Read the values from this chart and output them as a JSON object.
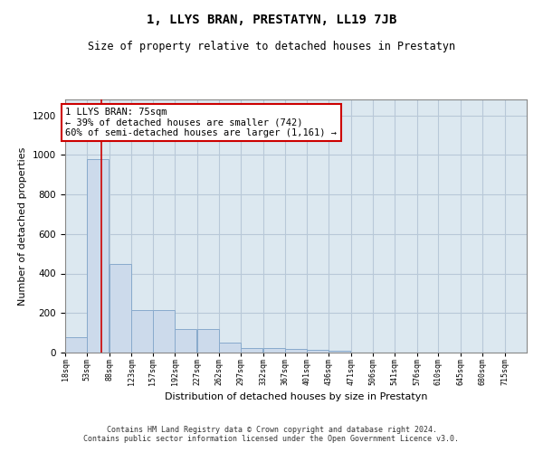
{
  "title": "1, LLYS BRAN, PRESTATYN, LL19 7JB",
  "subtitle": "Size of property relative to detached houses in Prestatyn",
  "xlabel": "Distribution of detached houses by size in Prestatyn",
  "ylabel": "Number of detached properties",
  "bin_labels": [
    "18sqm",
    "53sqm",
    "88sqm",
    "123sqm",
    "157sqm",
    "192sqm",
    "227sqm",
    "262sqm",
    "297sqm",
    "332sqm",
    "367sqm",
    "401sqm",
    "436sqm",
    "471sqm",
    "506sqm",
    "541sqm",
    "576sqm",
    "610sqm",
    "645sqm",
    "680sqm",
    "715sqm"
  ],
  "bin_edges": [
    18,
    53,
    88,
    123,
    157,
    192,
    227,
    262,
    297,
    332,
    367,
    401,
    436,
    471,
    506,
    541,
    576,
    610,
    645,
    680,
    715
  ],
  "bar_values": [
    80,
    980,
    450,
    215,
    215,
    120,
    120,
    50,
    25,
    25,
    20,
    15,
    10,
    0,
    0,
    0,
    0,
    0,
    0,
    0
  ],
  "bar_color": "#ccdaeb",
  "bar_edgecolor": "#88aacc",
  "bar_linewidth": 0.7,
  "grid_color": "#b8c8d8",
  "bg_color": "#dce8f0",
  "ylim": [
    0,
    1280
  ],
  "yticks": [
    0,
    200,
    400,
    600,
    800,
    1000,
    1200
  ],
  "vline_x": 75,
  "vline_color": "#cc0000",
  "vline_lw": 1.2,
  "annotation_text": "1 LLYS BRAN: 75sqm\n← 39% of detached houses are smaller (742)\n60% of semi-detached houses are larger (1,161) →",
  "annotation_box_color": "#ffffff",
  "annotation_box_edgecolor": "#cc0000",
  "footer_text": "Contains HM Land Registry data © Crown copyright and database right 2024.\nContains public sector information licensed under the Open Government Licence v3.0.",
  "title_fontsize": 10,
  "subtitle_fontsize": 8.5,
  "footer_fontsize": 6,
  "annotation_fontsize": 7.5,
  "ylabel_fontsize": 8,
  "xlabel_fontsize": 8
}
